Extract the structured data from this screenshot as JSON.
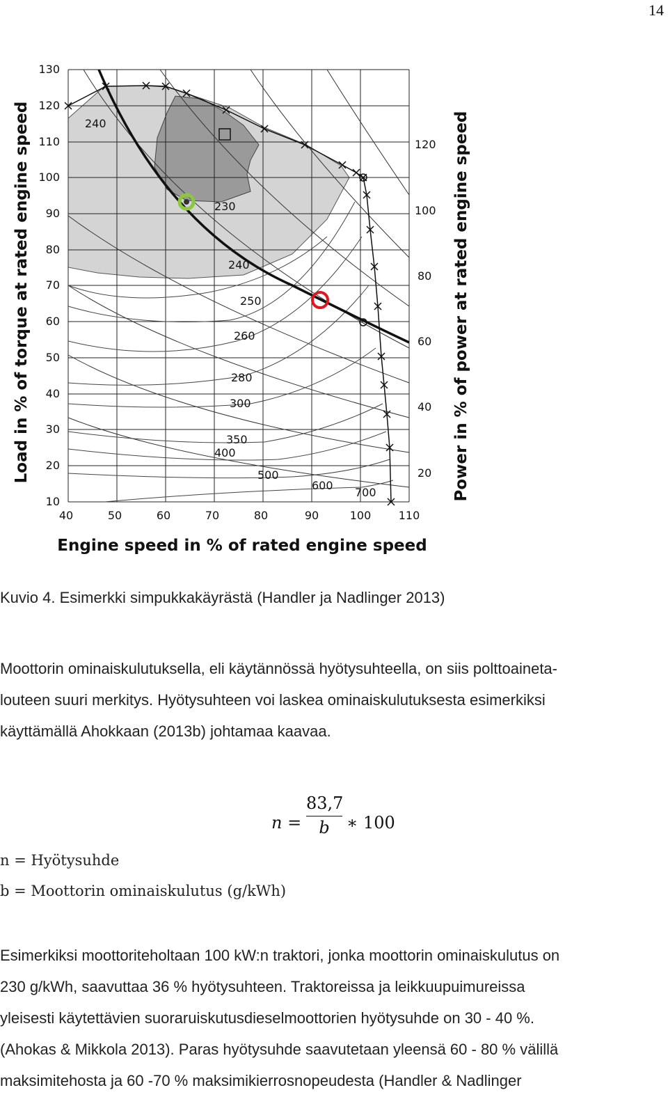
{
  "page_number": "14",
  "figure": {
    "y_left_label": "Load in % of torque at rated engine speed",
    "y_right_label": "Power in % of power at rated engine speed",
    "x_label": "Engine speed in % of rated engine speed",
    "x_ticks": [
      "40",
      "50",
      "60",
      "70",
      "80",
      "90",
      "100",
      "110"
    ],
    "y_left_ticks": [
      "10",
      "20",
      "30",
      "40",
      "50",
      "60",
      "70",
      "80",
      "90",
      "100",
      "110",
      "120",
      "130"
    ],
    "y_right_ticks": [
      "20",
      "40",
      "60",
      "80",
      "100",
      "120"
    ],
    "contour_labels": [
      "240",
      "230",
      "240",
      "250",
      "260",
      "280",
      "300",
      "350",
      "400",
      "500",
      "600",
      "700"
    ],
    "colors": {
      "light_region": "#d4d4d4",
      "dark_region": "#9a9a9a",
      "green_marker": "#8dc63f",
      "red_marker": "#e0161e"
    }
  },
  "caption": "Kuvio 4. Esimerkki simpukkakäyrästä (Handler ja Nadlinger 2013)",
  "paragraph1": {
    "line1": "Moottorin ominaiskulutuksella, eli käytännössä hyötysuhteella, on siis polttoaineta-",
    "line2": "louteen suuri merkitys. Hyötysuhteen voi laskea ominaiskulutuksesta esimerkiksi",
    "line3": "käyttämällä Ahokkaan (2013b) johtamaa kaavaa."
  },
  "formula": {
    "lhs": "n =",
    "numerator": "83,7",
    "denominator": "b",
    "rhs": "∗ 100"
  },
  "definitions": {
    "n": "n = Hyötysuhde",
    "b": "b = Moottorin ominaiskulutus (g/kWh)"
  },
  "paragraph2": {
    "line1": "Esimerkiksi moottoriteholtaan 100 kW:n traktori, jonka moottorin ominaiskulutus on",
    "line2": "230 g/kWh, saavuttaa 36 % hyötysuhteen. Traktoreissa ja leikkuupuimureissa",
    "line3": "yleisesti käytettävien suoraruiskutusdieselmoottorien hyötysuhde on 30 - 40 %.",
    "line4": "(Ahokas & Mikkola 2013). Paras hyötysuhde saavutetaan yleensä 60 - 80 % välillä",
    "line5": "maksimitehosta ja 60 -70 % maksimikierrosnopeudesta (Handler & Nadlinger"
  }
}
